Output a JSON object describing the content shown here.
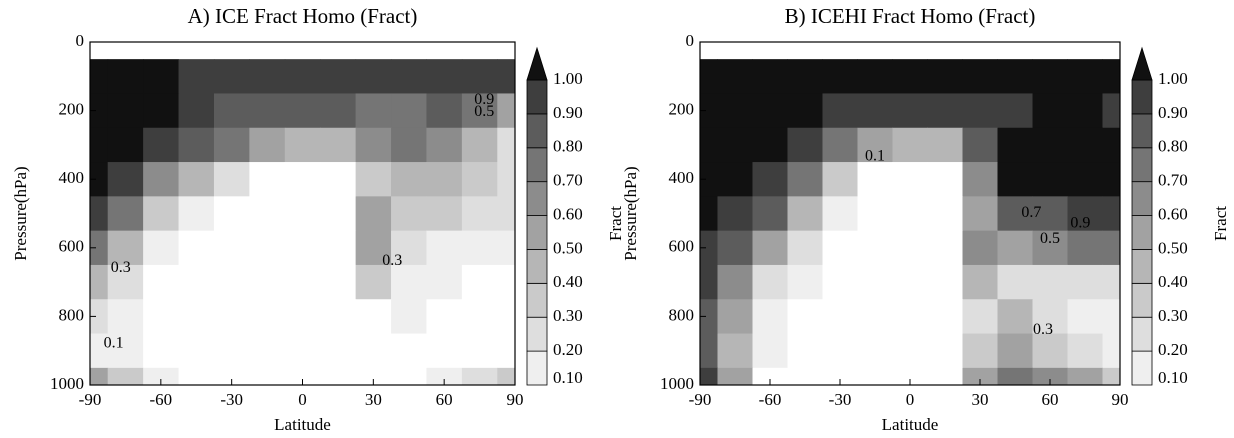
{
  "chart_data": [
    {
      "type": "contour",
      "title": "A) ICE Fract Homo (Fract)",
      "x_label": "Latitude",
      "y_label": "Pressure(hPa)",
      "colorbar_label": "Fract",
      "x": [
        -90,
        -75,
        -60,
        -45,
        -30,
        -15,
        0,
        15,
        30,
        45,
        60,
        75,
        90
      ],
      "y": [
        0,
        100,
        200,
        300,
        400,
        500,
        600,
        700,
        800,
        900,
        1000
      ],
      "z": [
        [
          0,
          0,
          0,
          0,
          0,
          0,
          0,
          0,
          0,
          0,
          0,
          0,
          0
        ],
        [
          1,
          1,
          1,
          0.95,
          0.95,
          0.95,
          0.95,
          0.95,
          0.95,
          0.95,
          0.95,
          0.95,
          0.9
        ],
        [
          1,
          1,
          1,
          0.9,
          0.85,
          0.85,
          0.85,
          0.8,
          0.75,
          0.7,
          0.85,
          0.75,
          0.5
        ],
        [
          1,
          1,
          0.9,
          0.8,
          0.7,
          0.5,
          0.45,
          0.45,
          0.6,
          0.7,
          0.6,
          0.4,
          0.25
        ],
        [
          1,
          0.9,
          0.6,
          0.4,
          0.25,
          0,
          0,
          0,
          0.3,
          0.4,
          0.4,
          0.3,
          0.2
        ],
        [
          0.95,
          0.7,
          0.3,
          0.1,
          0,
          0,
          0,
          0,
          0.5,
          0.3,
          0.3,
          0.2,
          0.2
        ],
        [
          0.7,
          0.4,
          0.15,
          0,
          0,
          0,
          0,
          0,
          0.5,
          0.2,
          0.15,
          0.15,
          0.15
        ],
        [
          0.4,
          0.25,
          0.05,
          0,
          0,
          0,
          0,
          0,
          0.3,
          0.15,
          0.1,
          0,
          0
        ],
        [
          0.2,
          0.12,
          0,
          0,
          0,
          0,
          0,
          0,
          0,
          0.12,
          0,
          0,
          0
        ],
        [
          0.15,
          0.1,
          0,
          0,
          0,
          0,
          0,
          0,
          0,
          0,
          0,
          0,
          0
        ],
        [
          0.5,
          0.3,
          0.1,
          0,
          0,
          0,
          0,
          0,
          0,
          0,
          0.15,
          0.2,
          0.3
        ]
      ],
      "xlim": [
        -90,
        90
      ],
      "xticks": [
        -90,
        -60,
        -30,
        0,
        30,
        60,
        90
      ],
      "ylim": [
        0,
        1000
      ],
      "yticks": [
        0,
        200,
        400,
        600,
        800,
        1000
      ],
      "y_inverted": true,
      "levels": [
        {
          "value": 0.1,
          "label": "0.10"
        },
        {
          "value": 0.2,
          "label": "0.20"
        },
        {
          "value": 0.3,
          "label": "0.30"
        },
        {
          "value": 0.4,
          "label": "0.40"
        },
        {
          "value": 0.5,
          "label": "0.50"
        },
        {
          "value": 0.6,
          "label": "0.60"
        },
        {
          "value": 0.7,
          "label": "0.70"
        },
        {
          "value": 0.8,
          "label": "0.80"
        },
        {
          "value": 0.9,
          "label": "0.90"
        },
        {
          "value": 1.0,
          "label": "1.00"
        }
      ],
      "colors": [
        "#efefef",
        "#dedede",
        "#cacaca",
        "#b6b6b6",
        "#a2a2a2",
        "#8c8c8c",
        "#757575",
        "#5c5c5c",
        "#3e3e3e",
        "#111111"
      ],
      "annotations": [
        {
          "text": "0.1",
          "x": -80,
          "y": 880
        },
        {
          "text": "0.3",
          "x": -77,
          "y": 660
        },
        {
          "text": "0.9",
          "x": 77,
          "y": 170
        },
        {
          "text": "0.5",
          "x": 77,
          "y": 205
        },
        {
          "text": "0.3",
          "x": 38,
          "y": 640
        }
      ]
    },
    {
      "type": "contour",
      "title": "B) ICEHI Fract Homo (Fract)",
      "x_label": "Latitude",
      "y_label": "Pressure(hPa)",
      "colorbar_label": "Fract",
      "x": [
        -90,
        -75,
        -60,
        -45,
        -30,
        -15,
        0,
        15,
        30,
        45,
        60,
        75,
        90
      ],
      "y": [
        0,
        100,
        200,
        300,
        400,
        500,
        600,
        700,
        800,
        900,
        1000
      ],
      "z": [
        [
          0,
          0,
          0,
          0,
          0,
          0,
          0,
          0,
          0,
          0,
          0,
          0,
          0
        ],
        [
          1,
          1,
          1,
          1,
          1,
          1,
          1,
          1,
          1,
          1,
          1,
          1,
          1
        ],
        [
          1,
          1,
          1,
          1,
          0.9,
          0.9,
          0.9,
          0.9,
          0.9,
          0.9,
          1,
          1,
          0.9
        ],
        [
          1,
          1,
          1,
          0.9,
          0.7,
          0.5,
          0.4,
          0.4,
          0.8,
          1,
          1,
          1,
          1
        ],
        [
          1,
          1,
          0.95,
          0.7,
          0.3,
          0,
          0,
          0,
          0.6,
          1,
          1,
          1,
          1
        ],
        [
          1,
          0.95,
          0.8,
          0.4,
          0.1,
          0,
          0,
          0,
          0.5,
          0.8,
          0.85,
          0.9,
          0.9
        ],
        [
          0.95,
          0.8,
          0.5,
          0.2,
          0,
          0,
          0,
          0,
          0.6,
          0.5,
          0.6,
          0.7,
          0.7
        ],
        [
          0.9,
          0.6,
          0.2,
          0.1,
          0,
          0,
          0,
          0,
          0.4,
          0.2,
          0.2,
          0.2,
          0.2
        ],
        [
          0.85,
          0.5,
          0.1,
          0,
          0,
          0,
          0,
          0,
          0.2,
          0.4,
          0.2,
          0.15,
          0.15
        ],
        [
          0.8,
          0.4,
          0.1,
          0,
          0,
          0,
          0,
          0,
          0.3,
          0.5,
          0.3,
          0.2,
          0.15
        ],
        [
          0.9,
          0.5,
          0,
          0,
          0,
          0,
          0,
          0,
          0.5,
          0.7,
          0.6,
          0.5,
          0.3
        ]
      ],
      "xlim": [
        -90,
        90
      ],
      "xticks": [
        -90,
        -60,
        -30,
        0,
        30,
        60,
        90
      ],
      "ylim": [
        0,
        1000
      ],
      "yticks": [
        0,
        200,
        400,
        600,
        800,
        1000
      ],
      "y_inverted": true,
      "levels": [
        {
          "value": 0.1,
          "label": "0.10"
        },
        {
          "value": 0.2,
          "label": "0.20"
        },
        {
          "value": 0.3,
          "label": "0.30"
        },
        {
          "value": 0.4,
          "label": "0.40"
        },
        {
          "value": 0.5,
          "label": "0.50"
        },
        {
          "value": 0.6,
          "label": "0.60"
        },
        {
          "value": 0.7,
          "label": "0.70"
        },
        {
          "value": 0.8,
          "label": "0.80"
        },
        {
          "value": 0.9,
          "label": "0.90"
        },
        {
          "value": 1.0,
          "label": "1.00"
        }
      ],
      "colors": [
        "#efefef",
        "#dedede",
        "#cacaca",
        "#b6b6b6",
        "#a2a2a2",
        "#8c8c8c",
        "#757575",
        "#5c5c5c",
        "#3e3e3e",
        "#111111"
      ],
      "annotations": [
        {
          "text": "0.1",
          "x": -15,
          "y": 335
        },
        {
          "text": "0.9",
          "x": 73,
          "y": 530
        },
        {
          "text": "0.7",
          "x": 52,
          "y": 500
        },
        {
          "text": "0.5",
          "x": 60,
          "y": 575
        },
        {
          "text": "0.3",
          "x": 57,
          "y": 840
        }
      ]
    }
  ]
}
